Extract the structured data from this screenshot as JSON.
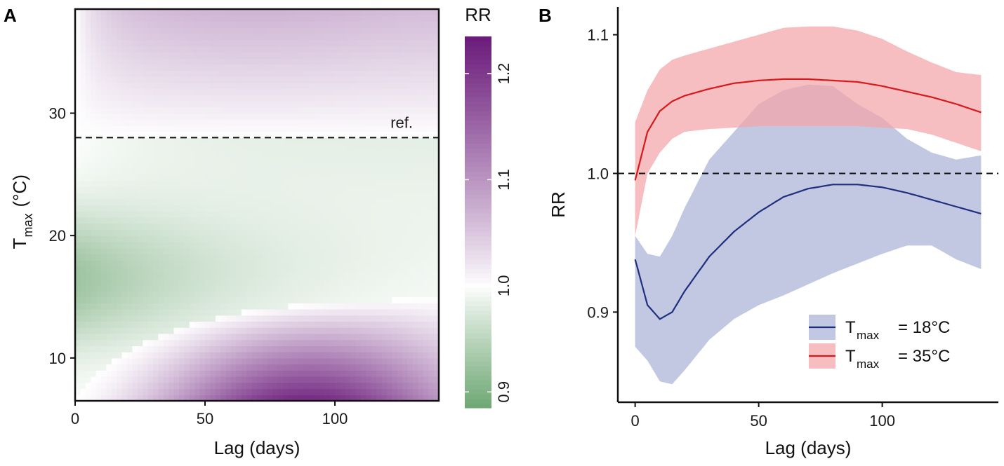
{
  "chart_data": [
    {
      "panel": "A",
      "type": "heatmap",
      "xlabel": "Lag (days)",
      "ylabel_main": "T",
      "ylabel_sub": "max",
      "ylabel_unit": "(°C)",
      "xlim": [
        0,
        140
      ],
      "ylim": [
        6.5,
        38.5
      ],
      "xticks": [
        0,
        50,
        100
      ],
      "xtick_labels": [
        "0",
        "50",
        "100"
      ],
      "yticks": [
        10,
        20,
        30
      ],
      "ytick_labels": [
        "10",
        "20",
        "30"
      ],
      "reference_temperature": 28,
      "reference_label": "ref.",
      "colorbar": {
        "title": "RR",
        "range": [
          0.885,
          1.235
        ],
        "ticks": [
          0.9,
          1.0,
          1.1,
          1.2
        ],
        "tick_labels": [
          "0.9",
          "1.0",
          "1.1",
          "1.2"
        ],
        "low_color": "#6fa774",
        "mid_color": "#ffffff",
        "high_color": "#6a1b7a"
      },
      "description_values": {
        "max_RR_location": {
          "lag": 85,
          "tmax": 7,
          "rr": 1.23
        },
        "min_RR_location": {
          "lag": 10,
          "tmax": 17,
          "rr": 0.92
        }
      }
    },
    {
      "panel": "B",
      "type": "line",
      "xlabel": "Lag (days)",
      "ylabel": "RR",
      "xlim": [
        -7,
        147
      ],
      "ylim": [
        0.835,
        1.12
      ],
      "xticks": [
        0,
        50,
        100
      ],
      "xtick_labels": [
        "0",
        "50",
        "100"
      ],
      "yticks": [
        0.9,
        1.0,
        1.1
      ],
      "ytick_labels": [
        "0.9",
        "1.0",
        "1.1"
      ],
      "reference_line": 1.0,
      "series": [
        {
          "name": "Tmax = 18°C",
          "legend_main": "T",
          "legend_sub": "max",
          "legend_value": "= 18°C",
          "color": "#1f2f7e",
          "band_color": "#a9b1d6",
          "x": [
            0,
            5,
            10,
            15,
            20,
            30,
            40,
            50,
            60,
            70,
            80,
            90,
            100,
            110,
            120,
            130,
            140
          ],
          "y": [
            0.938,
            0.905,
            0.895,
            0.9,
            0.915,
            0.94,
            0.958,
            0.972,
            0.983,
            0.989,
            0.992,
            0.992,
            0.99,
            0.986,
            0.981,
            0.976,
            0.971
          ],
          "lower": [
            0.875,
            0.865,
            0.85,
            0.848,
            0.858,
            0.88,
            0.895,
            0.905,
            0.912,
            0.92,
            0.928,
            0.935,
            0.942,
            0.948,
            0.948,
            0.938,
            0.931
          ],
          "upper": [
            0.955,
            0.942,
            0.94,
            0.955,
            0.975,
            1.01,
            1.03,
            1.05,
            1.06,
            1.064,
            1.063,
            1.05,
            1.04,
            1.025,
            1.015,
            1.01,
            1.013
          ]
        },
        {
          "name": "Tmax = 35°C",
          "legend_main": "T",
          "legend_sub": "max",
          "legend_value": "= 35°C",
          "color": "#d7191c",
          "band_color": "#f4a3a6",
          "x": [
            0,
            5,
            10,
            15,
            20,
            30,
            40,
            50,
            60,
            70,
            80,
            90,
            100,
            110,
            120,
            130,
            140
          ],
          "y": [
            0.995,
            1.03,
            1.045,
            1.052,
            1.056,
            1.061,
            1.065,
            1.067,
            1.068,
            1.068,
            1.067,
            1.066,
            1.063,
            1.059,
            1.055,
            1.05,
            1.044
          ],
          "lower": [
            0.955,
            1.0,
            1.015,
            1.025,
            1.03,
            1.032,
            1.033,
            1.034,
            1.034,
            1.034,
            1.034,
            1.034,
            1.033,
            1.032,
            1.028,
            1.022,
            1.016
          ],
          "upper": [
            1.037,
            1.06,
            1.075,
            1.082,
            1.085,
            1.09,
            1.095,
            1.1,
            1.105,
            1.106,
            1.106,
            1.103,
            1.097,
            1.088,
            1.08,
            1.073,
            1.071
          ]
        }
      ]
    }
  ]
}
